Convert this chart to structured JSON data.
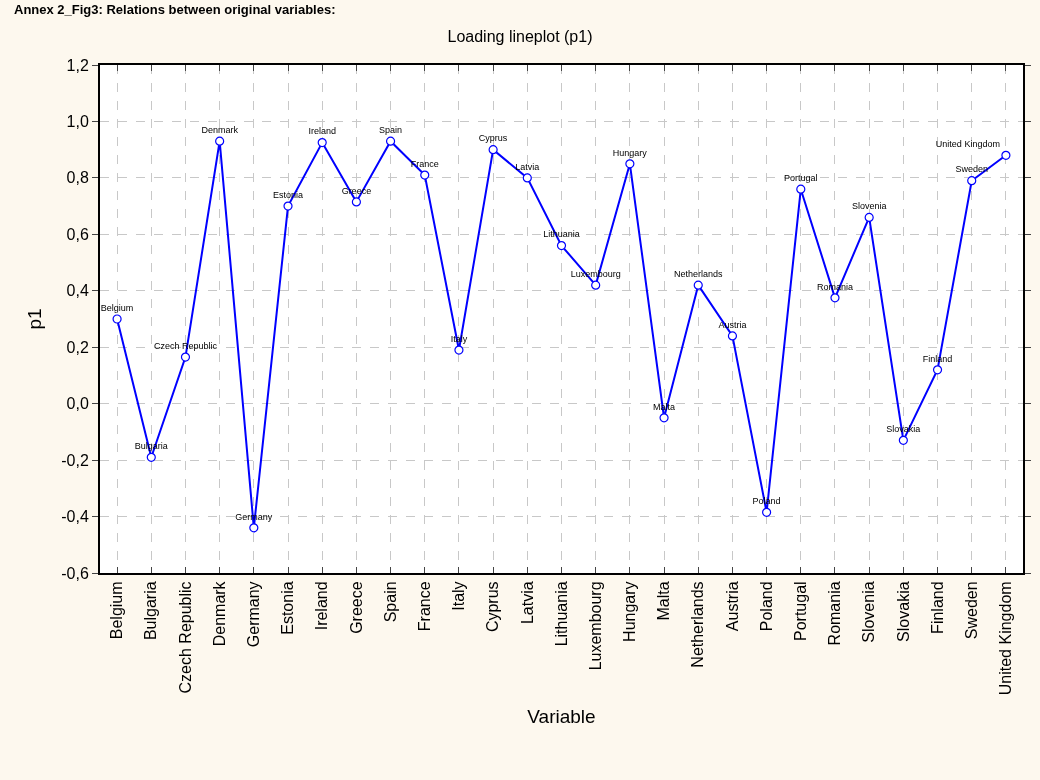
{
  "chart_data": {
    "type": "line",
    "title": "Loading lineplot (p1)",
    "xlabel": "Variable",
    "ylabel": "p1",
    "annotations": [
      "Annex 2_Fig3: Relations between original variables:"
    ],
    "categories": [
      "Belgium",
      "Bulgaria",
      "Czech Republic",
      "Denmark",
      "Germany",
      "Estonia",
      "Ireland",
      "Greece",
      "Spain",
      "France",
      "Italy",
      "Cyprus",
      "Latvia",
      "Lithuania",
      "Luxembourg",
      "Hungary",
      "Malta",
      "Netherlands",
      "Austria",
      "Poland",
      "Portugal",
      "Romania",
      "Slovenia",
      "Slovakia",
      "Finland",
      "Sweden",
      "United Kingdom"
    ],
    "series": [
      {
        "color": "#0000ff",
        "values": [
          0.3,
          -0.19,
          0.165,
          0.93,
          -0.44,
          0.7,
          0.925,
          0.715,
          0.93,
          0.81,
          0.19,
          0.9,
          0.8,
          0.56,
          0.42,
          0.85,
          -0.05,
          0.42,
          0.24,
          -0.385,
          0.76,
          0.375,
          0.66,
          -0.13,
          0.12,
          0.79,
          0.88
        ]
      }
    ],
    "ylim": [
      -0.6,
      1.2
    ],
    "yticks": [
      {
        "value": -0.6,
        "label": "-0,6"
      },
      {
        "value": -0.4,
        "label": "-0,4"
      },
      {
        "value": -0.2,
        "label": "-0,2"
      },
      {
        "value": 0,
        "label": "0,0"
      },
      {
        "value": 0.2,
        "label": "0,2"
      },
      {
        "value": 0.4,
        "label": "0,4"
      },
      {
        "value": 0.6,
        "label": "0,6"
      },
      {
        "value": 0.8,
        "label": "0,8"
      },
      {
        "value": 1.0,
        "label": "1,0"
      },
      {
        "value": 1.2,
        "label": "1,2"
      }
    ],
    "grid": true,
    "marker": "circle",
    "line_style": "solid",
    "legend": false
  }
}
